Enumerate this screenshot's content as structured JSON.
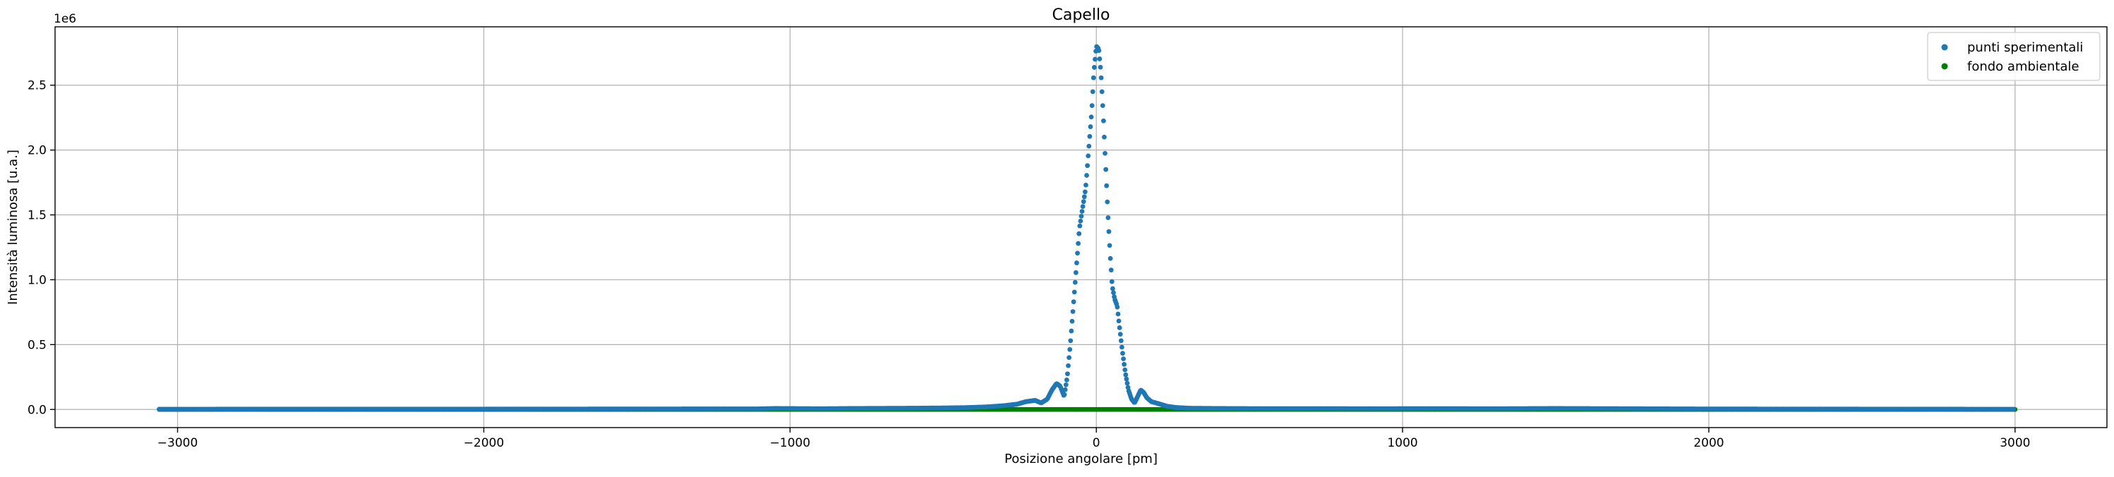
{
  "chart_data": {
    "type": "scatter",
    "title": "Capello",
    "xlabel": "Posizione angolare [pm]",
    "ylabel": "Intensità luminosa [u.a.]",
    "y_offset_label": "1e6",
    "xlim": [
      -3400,
      3300
    ],
    "ylim": [
      -140000,
      2950000
    ],
    "x_ticks": [
      -3000,
      -2000,
      -1000,
      0,
      1000,
      2000,
      3000
    ],
    "x_tick_labels": [
      "−3000",
      "−2000",
      "−1000",
      "0",
      "1000",
      "2000",
      "3000"
    ],
    "y_ticks": [
      0,
      500000,
      1000000,
      1500000,
      2000000,
      2500000
    ],
    "y_tick_labels": [
      "0.0",
      "0.5",
      "1.0",
      "1.5",
      "2.0",
      "2.5"
    ],
    "grid": true,
    "legend_position": "top-right",
    "series": [
      {
        "name": "punti sperimentali",
        "color": "#1f77b4",
        "marker": "circle",
        "x": [
          -3060,
          -2500,
          -2000,
          -1500,
          -1100,
          -1050,
          -900,
          -800,
          -700,
          -600,
          -500,
          -420,
          -360,
          -300,
          -260,
          -230,
          -200,
          -180,
          -160,
          -145,
          -130,
          -118,
          -105,
          -95,
          -85,
          -75,
          -65,
          -55,
          -45,
          -35,
          -25,
          -15,
          -8,
          0,
          8,
          15,
          22,
          30,
          38,
          45,
          52,
          60,
          68,
          75,
          85,
          95,
          105,
          115,
          125,
          135,
          145,
          155,
          165,
          180,
          195,
          210,
          230,
          260,
          300,
          400,
          500,
          700,
          900,
          1100,
          1300,
          1500,
          2000,
          2500,
          3000
        ],
        "y": [
          2000,
          3000,
          3000,
          4000,
          5000,
          8000,
          6000,
          8000,
          9000,
          10000,
          12000,
          15000,
          20000,
          30000,
          40000,
          60000,
          70000,
          50000,
          80000,
          150000,
          200000,
          180000,
          100000,
          250000,
          500000,
          800000,
          1100000,
          1400000,
          1550000,
          1700000,
          2000000,
          2300000,
          2600000,
          2800000,
          2780000,
          2600000,
          2300000,
          1900000,
          1500000,
          1200000,
          950000,
          850000,
          800000,
          650000,
          450000,
          280000,
          150000,
          80000,
          50000,
          100000,
          150000,
          130000,
          90000,
          60000,
          50000,
          40000,
          25000,
          15000,
          10000,
          8000,
          7000,
          7000,
          6000,
          7000,
          6000,
          8000,
          4000,
          3000,
          2000
        ]
      },
      {
        "name": "fondo ambientale",
        "color": "#008000",
        "marker": "circle",
        "x_range": [
          -3060,
          3000
        ],
        "y": 0
      }
    ]
  }
}
